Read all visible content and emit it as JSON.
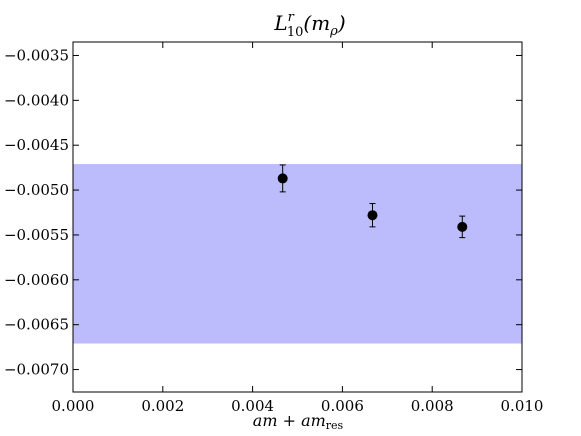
{
  "chart_data": {
    "type": "scatter",
    "title": {
      "main": "L",
      "sup": "r",
      "sub": "10",
      "arg_open": "(m",
      "arg_sub": "ρ",
      "arg_close": ")"
    },
    "xlabel": {
      "main": "am + am",
      "sub": "res"
    },
    "ylabel": "",
    "xlim": [
      0.0,
      0.01
    ],
    "ylim": [
      -0.00725,
      -0.00335
    ],
    "xticks": [
      0.0,
      0.002,
      0.004,
      0.006,
      0.008,
      0.01
    ],
    "xtick_labels": [
      "0.000",
      "0.002",
      "0.004",
      "0.006",
      "0.008",
      "0.010"
    ],
    "yticks": [
      -0.0035,
      -0.004,
      -0.0045,
      -0.005,
      -0.0055,
      -0.006,
      -0.0065,
      -0.007
    ],
    "ytick_labels": [
      "−0.0035",
      "−0.0040",
      "−0.0045",
      "−0.0050",
      "−0.0055",
      "−0.0060",
      "−0.0065",
      "−0.0070"
    ],
    "grid": false,
    "band": {
      "ymin": -0.00671,
      "ymax": -0.00471,
      "color": "#bcbcfd"
    },
    "points": [
      {
        "x": 0.00467,
        "y": -0.00487,
        "yerr": 0.00015
      },
      {
        "x": 0.00667,
        "y": -0.00528,
        "yerr": 0.00013
      },
      {
        "x": 0.00867,
        "y": -0.00541,
        "yerr": 0.00012
      }
    ],
    "marker_color": "#000000"
  }
}
